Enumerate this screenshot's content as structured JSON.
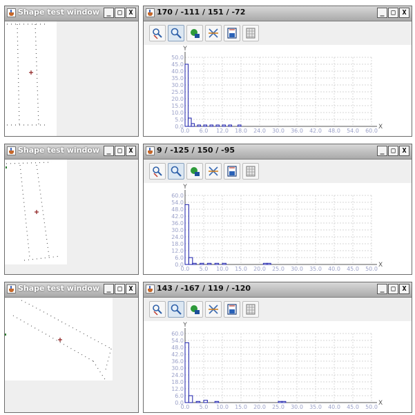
{
  "shape_windows": [
    {
      "title": "Shape test window"
    },
    {
      "title": "Shape test window"
    },
    {
      "title": "Shape test window"
    }
  ],
  "histogram_windows": [
    {
      "title": "170 / -111 / 151 / -72"
    },
    {
      "title": "9 / -125 / 150 / -95"
    },
    {
      "title": "143 / -167 / 119 / -120"
    }
  ],
  "window_buttons": {
    "minimize": "_",
    "maximize": "□",
    "close": "X"
  },
  "toolbar_icons": [
    "zoom-reset-icon",
    "zoom-icon",
    "pan-icon",
    "fit-icon",
    "save-icon",
    "grid-icon"
  ],
  "chart_data": [
    {
      "type": "bar",
      "xlabel": "X",
      "ylabel": "Y",
      "x_ticks": [
        "0.0",
        "6.0",
        "12.0",
        "18.0",
        "24.0",
        "30.0",
        "36.0",
        "42.0",
        "48.0",
        "54.0",
        "60.0"
      ],
      "y_ticks": [
        "0.0",
        "5.0",
        "10.0",
        "15.0",
        "20.0",
        "25.0",
        "30.0",
        "35.0",
        "40.0",
        "45.0",
        "50.0"
      ],
      "xlim": [
        0,
        60
      ],
      "ylim": [
        0,
        50
      ],
      "bins": [
        [
          0,
          1,
          45
        ],
        [
          1,
          2,
          6
        ],
        [
          2,
          3,
          2
        ],
        [
          4,
          5,
          1
        ],
        [
          6,
          7,
          1
        ],
        [
          8,
          9,
          1
        ],
        [
          10,
          11,
          1
        ],
        [
          12,
          13,
          1
        ],
        [
          14,
          15,
          1
        ],
        [
          17,
          18,
          1
        ]
      ]
    },
    {
      "type": "bar",
      "xlabel": "X",
      "ylabel": "Y",
      "x_ticks": [
        "0.0",
        "5.0",
        "10.0",
        "15.0",
        "20.0",
        "25.0",
        "30.0",
        "35.0",
        "40.0",
        "45.0",
        "50.0"
      ],
      "y_ticks": [
        "0.0",
        "6.0",
        "12.0",
        "18.0",
        "24.0",
        "30.0",
        "36.0",
        "42.0",
        "48.0",
        "54.0",
        "60.0"
      ],
      "xlim": [
        0,
        50
      ],
      "ylim": [
        0,
        60
      ],
      "bins": [
        [
          0,
          1,
          52
        ],
        [
          1,
          2,
          6
        ],
        [
          2,
          3,
          1
        ],
        [
          4,
          5,
          1
        ],
        [
          6,
          7,
          1
        ],
        [
          8,
          9,
          1
        ],
        [
          10,
          11,
          1
        ],
        [
          21,
          22,
          1
        ],
        [
          22,
          23,
          1
        ]
      ]
    },
    {
      "type": "bar",
      "xlabel": "X",
      "ylabel": "Y",
      "x_ticks": [
        "0.0",
        "5.0",
        "10.0",
        "15.0",
        "20.0",
        "25.0",
        "30.0",
        "35.0",
        "40.0",
        "45.0",
        "50.0"
      ],
      "y_ticks": [
        "0.0",
        "6.0",
        "12.0",
        "18.0",
        "24.0",
        "30.0",
        "36.0",
        "42.0",
        "48.0",
        "54.0",
        "60.0"
      ],
      "xlim": [
        0,
        50
      ],
      "ylim": [
        0,
        60
      ],
      "bins": [
        [
          0,
          1,
          52
        ],
        [
          1,
          2,
          6
        ],
        [
          3,
          4,
          1
        ],
        [
          5,
          6,
          2
        ],
        [
          8,
          9,
          1
        ],
        [
          25,
          26,
          1
        ],
        [
          26,
          27,
          1
        ]
      ]
    }
  ]
}
